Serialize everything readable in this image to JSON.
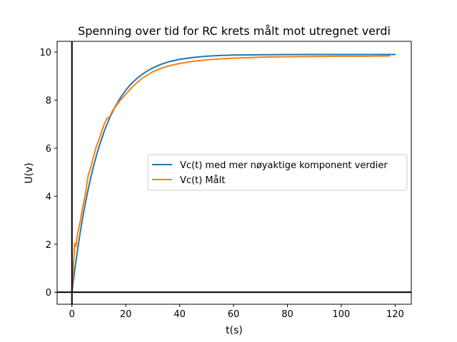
{
  "chart_data": {
    "type": "line",
    "title": "Spenning over tid for RC krets målt mot utregnet verdi",
    "xlabel": "t(s)",
    "ylabel": "U(v)",
    "xlim": [
      -5.5,
      126
    ],
    "ylim": [
      -0.5,
      10.45
    ],
    "x_ticks": [
      0,
      20,
      40,
      60,
      80,
      100,
      120
    ],
    "y_ticks": [
      0,
      2,
      4,
      6,
      8,
      10
    ],
    "x_tick_labels": [
      "0",
      "20",
      "40",
      "60",
      "80",
      "100",
      "120"
    ],
    "y_tick_labels": [
      "0",
      "2",
      "4",
      "6",
      "8",
      "10"
    ],
    "reference_lines": {
      "vertical_at_x": 0,
      "horizontal_at_y": 0
    },
    "grid": false,
    "legend_position": "center-right",
    "series": [
      {
        "name": "Vc(t) med mer nøyaktige komponent verdier",
        "color": "#1f77b4",
        "x": [
          0,
          1,
          2,
          3,
          4,
          5,
          6,
          7,
          8,
          9,
          10,
          12,
          14,
          16,
          18,
          20,
          22,
          24,
          26,
          28,
          30,
          33,
          36,
          40,
          45,
          50,
          55,
          60,
          70,
          80,
          90,
          100,
          110,
          120
        ],
        "y": [
          0,
          0.89,
          1.7,
          2.44,
          3.11,
          3.72,
          4.27,
          4.78,
          5.24,
          5.66,
          6.04,
          6.71,
          7.26,
          7.72,
          8.1,
          8.42,
          8.68,
          8.89,
          9.07,
          9.22,
          9.34,
          9.49,
          9.6,
          9.7,
          9.78,
          9.83,
          9.86,
          9.88,
          9.89,
          9.9,
          9.9,
          9.9,
          9.9,
          9.9
        ]
      },
      {
        "name": "Vc(t) Målt",
        "color": "#ff7f0e",
        "x": [
          0,
          0.5,
          1,
          1.5,
          2,
          3,
          4,
          5,
          6,
          7,
          8,
          9,
          10,
          11,
          12,
          13,
          14,
          15,
          16,
          18,
          20,
          22,
          24,
          26,
          28,
          30,
          33,
          36,
          40,
          45,
          50,
          55,
          60,
          70,
          80,
          90,
          100,
          110,
          118
        ],
        "y": [
          0.05,
          1.0,
          2.05,
          1.9,
          2.4,
          2.9,
          3.55,
          4.1,
          4.85,
          5.2,
          5.65,
          6.05,
          6.35,
          6.7,
          7.0,
          7.25,
          7.3,
          7.55,
          7.7,
          8.0,
          8.25,
          8.5,
          8.72,
          8.9,
          9.05,
          9.18,
          9.32,
          9.43,
          9.53,
          9.62,
          9.68,
          9.72,
          9.75,
          9.79,
          9.81,
          9.82,
          9.83,
          9.83,
          9.84
        ]
      }
    ]
  }
}
